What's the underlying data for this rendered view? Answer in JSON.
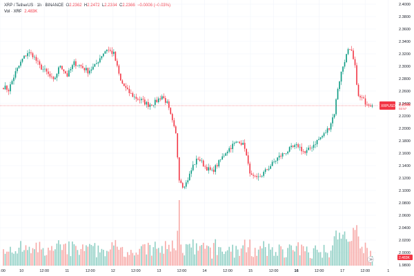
{
  "legend": {
    "symbol": "XRP / TetherUS",
    "interval": "1h",
    "exchange": "BINANCE",
    "o_label": "O",
    "o_value": "2.2362",
    "h_label": "H",
    "h_value": "2.2472",
    "l_label": "L",
    "l_value": "2.2334",
    "c_label": "C",
    "c_value": "2.2366",
    "change": "−0.0006 (−0.03%)",
    "vol_label": "Vol · XRP",
    "vol_value": "2.483K"
  },
  "price_tag": {
    "symbol": "XRPUSDT",
    "price": "2.2366",
    "countdown": "02:57"
  },
  "volume_tag": "2.483K",
  "colors": {
    "up": "#089981",
    "down": "#f23645",
    "up_volume": "#8fcfc4",
    "down_volume": "#f7a9a7",
    "price_line": "#f23645",
    "grid": "#f0f3fa"
  },
  "chart_data": {
    "type": "candlestick",
    "title": "XRP / TetherUS · 1h · BINANCE",
    "ylim": [
      1.98,
      2.4
    ],
    "y_ticks": [
      "2.4000",
      "2.3800",
      "2.3600",
      "2.3400",
      "2.3200",
      "2.3000",
      "2.2800",
      "2.2600",
      "2.2400",
      "2.2200",
      "2.2000",
      "2.1800",
      "2.1600",
      "2.1400",
      "2.1200",
      "2.1000",
      "2.0800",
      "2.0600",
      "2.0400",
      "2.0200",
      "2.0000",
      "1.9800"
    ],
    "x_ticks": [
      {
        "label": ":00",
        "pos": 0.0
      },
      {
        "label": "10",
        "pos": 0.052
      },
      {
        "label": "12:00",
        "pos": 0.107
      },
      {
        "label": "11",
        "pos": 0.162
      },
      {
        "label": "12:00",
        "pos": 0.218
      },
      {
        "label": "12",
        "pos": 0.273
      },
      {
        "label": "12:00",
        "pos": 0.328
      },
      {
        "label": "13",
        "pos": 0.384
      },
      {
        "label": "12:00",
        "pos": 0.439
      },
      {
        "label": "14",
        "pos": 0.494
      },
      {
        "label": "12:00",
        "pos": 0.55
      },
      {
        "label": "15",
        "pos": 0.605
      },
      {
        "label": "12:00",
        "pos": 0.661
      },
      {
        "label": "16",
        "pos": 0.716,
        "bold": true
      },
      {
        "label": "12:00",
        "pos": 0.771
      },
      {
        "label": "17",
        "pos": 0.827
      },
      {
        "label": "12:00",
        "pos": 0.882
      },
      {
        "label": "1",
        "pos": 0.938
      }
    ],
    "last_price": 2.2366,
    "close_anchors": [
      [
        0,
        2.267
      ],
      [
        3,
        2.262
      ],
      [
        7,
        2.29
      ],
      [
        11,
        2.311
      ],
      [
        14,
        2.322
      ],
      [
        17,
        2.318
      ],
      [
        21,
        2.3
      ],
      [
        25,
        2.29
      ],
      [
        29,
        2.276
      ],
      [
        33,
        2.302
      ],
      [
        37,
        2.285
      ],
      [
        41,
        2.305
      ],
      [
        45,
        2.3
      ],
      [
        49,
        2.292
      ],
      [
        53,
        2.3
      ],
      [
        57,
        2.318
      ],
      [
        60,
        2.328
      ],
      [
        64,
        2.32
      ],
      [
        68,
        2.276
      ],
      [
        72,
        2.26
      ],
      [
        76,
        2.25
      ],
      [
        80,
        2.245
      ],
      [
        84,
        2.238
      ],
      [
        88,
        2.242
      ],
      [
        92,
        2.252
      ],
      [
        95,
        2.24
      ],
      [
        98,
        2.21
      ],
      [
        100,
        2.19
      ],
      [
        102,
        2.12
      ],
      [
        104,
        2.108
      ],
      [
        106,
        2.112
      ],
      [
        108,
        2.125
      ],
      [
        110,
        2.14
      ],
      [
        113,
        2.152
      ],
      [
        117,
        2.138
      ],
      [
        121,
        2.13
      ],
      [
        125,
        2.145
      ],
      [
        129,
        2.162
      ],
      [
        133,
        2.173
      ],
      [
        137,
        2.18
      ],
      [
        140,
        2.17
      ],
      [
        142,
        2.14
      ],
      [
        144,
        2.122
      ],
      [
        147,
        2.118
      ],
      [
        151,
        2.128
      ],
      [
        155,
        2.14
      ],
      [
        159,
        2.152
      ],
      [
        163,
        2.16
      ],
      [
        167,
        2.168
      ],
      [
        171,
        2.172
      ],
      [
        175,
        2.16
      ],
      [
        178,
        2.168
      ],
      [
        182,
        2.18
      ],
      [
        186,
        2.19
      ],
      [
        189,
        2.202
      ],
      [
        192,
        2.225
      ],
      [
        194,
        2.265
      ],
      [
        196,
        2.29
      ],
      [
        198,
        2.31
      ],
      [
        200,
        2.325
      ],
      [
        202,
        2.322
      ],
      [
        204,
        2.298
      ],
      [
        206,
        2.25
      ],
      [
        208,
        2.248
      ],
      [
        210,
        2.242
      ],
      [
        212,
        2.24
      ],
      [
        214,
        2.2366
      ]
    ],
    "volume_max": 100
  }
}
